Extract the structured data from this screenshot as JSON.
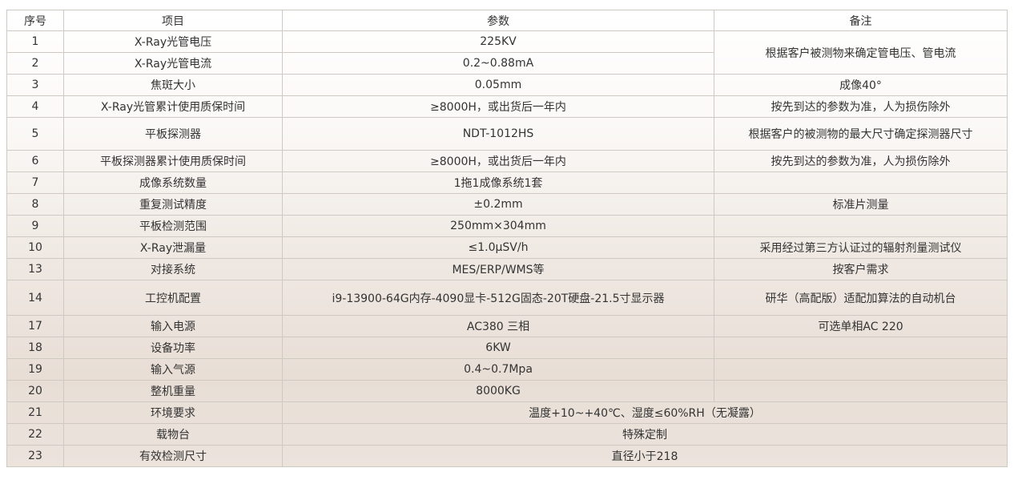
{
  "header": {
    "no": "序号",
    "item": "项目",
    "param": "参数",
    "note": "备注"
  },
  "rows": [
    {
      "no": "1",
      "item": "X-Ray光管电压",
      "param": "225KV",
      "note": "根据客户被测物来确定管电压、管电流"
    },
    {
      "no": "2",
      "item": "X-Ray光管电流",
      "param": "0.2~0.88mA"
    },
    {
      "no": "3",
      "item": "焦斑大小",
      "param": "0.05mm",
      "note": "成像40°"
    },
    {
      "no": "4",
      "item": "X-Ray光管累计使用质保时间",
      "param": "≥8000H，或出货后一年内",
      "note": "按先到达的参数为准，人为损伤除外"
    },
    {
      "no": "5",
      "item": "平板探测器",
      "param": "NDT-1012HS",
      "note": "根据客户的被测物的最大尺寸确定探测器尺寸"
    },
    {
      "no": "6",
      "item": "平板探测器累计使用质保时间",
      "param": "≥8000H，或出货后一年内",
      "note": "按先到达的参数为准，人为损伤除外"
    },
    {
      "no": "7",
      "item": "成像系统数量",
      "param": "1拖1成像系统1套",
      "note": ""
    },
    {
      "no": "8",
      "item": "重复测试精度",
      "param": "±0.2mm",
      "note": "标准片测量"
    },
    {
      "no": "9",
      "item": "平板检测范围",
      "param": "250mm×304mm",
      "note": ""
    },
    {
      "no": "10",
      "item": "X-Ray泄漏量",
      "param": "≤1.0μSV/h",
      "note": "采用经过第三方认证过的辐射剂量测试仪"
    },
    {
      "no": "13",
      "item": "对接系统",
      "param": "MES/ERP/WMS等",
      "note": "按客户需求"
    },
    {
      "no": "14",
      "item": "工控机配置",
      "param": "i9-13900-64G内存-4090显卡-512G固态-20T硬盘-21.5寸显示器",
      "note": "研华（高配版）适配加算法的自动机台"
    },
    {
      "no": "17",
      "item": "输入电源",
      "param": "AC380 三相",
      "note": "可选单相AC 220"
    },
    {
      "no": "18",
      "item": "设备功率",
      "param": "6KW",
      "note": ""
    },
    {
      "no": "19",
      "item": "输入气源",
      "param": "0.4~0.7Mpa",
      "note": ""
    },
    {
      "no": "20",
      "item": "整机重量",
      "param": "8000KG",
      "note": ""
    },
    {
      "no": "21",
      "item": "环境要求",
      "param": "温度+10~+40℃、湿度≤60%RH（无凝露）"
    },
    {
      "no": "22",
      "item": "载物台",
      "param": "特殊定制"
    },
    {
      "no": "23",
      "item": "有效检测尺寸",
      "param": "直径小于218"
    }
  ]
}
